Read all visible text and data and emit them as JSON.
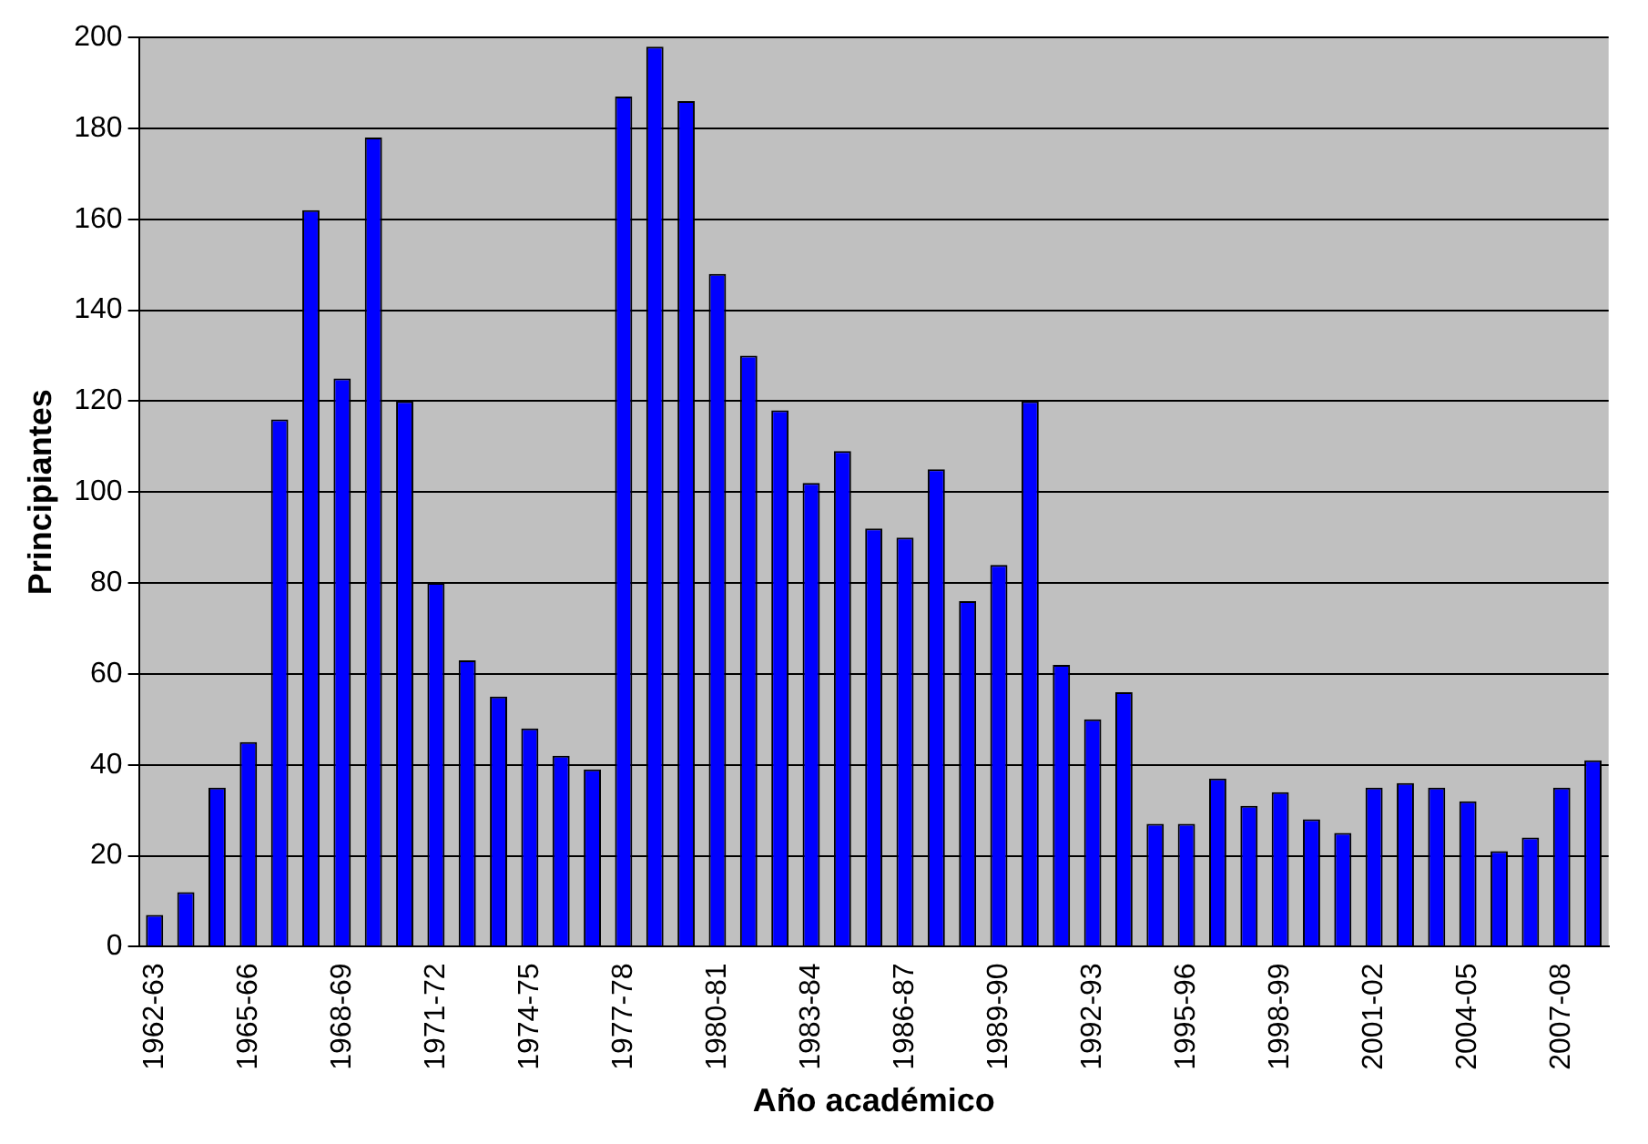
{
  "chart_data": {
    "type": "bar",
    "xlabel": "Año académico",
    "ylabel": "Principiantes",
    "categories": [
      "1962-63",
      null,
      null,
      "1965-66",
      null,
      null,
      "1968-69",
      null,
      null,
      "1971-72",
      null,
      null,
      "1974-75",
      null,
      null,
      "1977-78",
      null,
      null,
      "1980-81",
      null,
      null,
      "1983-84",
      null,
      null,
      "1986-87",
      null,
      null,
      "1989-90",
      null,
      null,
      "1992-93",
      null,
      null,
      "1995-96",
      null,
      null,
      "1998-99",
      null,
      null,
      "2001-02",
      null,
      null,
      "2004-05",
      null,
      null,
      "2007-08",
      null
    ],
    "values": [
      7,
      12,
      35,
      45,
      116,
      162,
      125,
      178,
      120,
      80,
      63,
      55,
      48,
      42,
      39,
      187,
      198,
      186,
      148,
      130,
      118,
      102,
      109,
      92,
      90,
      105,
      76,
      84,
      120,
      62,
      50,
      56,
      27,
      27,
      37,
      31,
      34,
      28,
      25,
      35,
      36,
      35,
      32,
      21,
      24,
      35,
      41
    ],
    "color": "#0000ff",
    "ylim": [
      0,
      200
    ],
    "yticks": [
      0,
      20,
      40,
      60,
      80,
      100,
      120,
      140,
      160,
      180,
      200
    ],
    "grid": "y"
  }
}
